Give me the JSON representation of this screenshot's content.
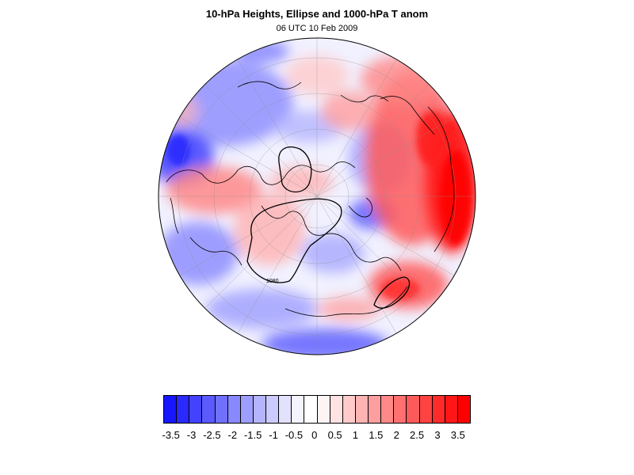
{
  "title": "10-hPa Heights, Ellipse and 1000-hPa T anom",
  "subtitle": "06 UTC 10 Feb 2009",
  "map": {
    "projection": "orthographic-polar",
    "field": "1000-hPa temperature anomaly",
    "contour_label": "1080"
  },
  "colorbar": {
    "colors": [
      "#1616ff",
      "#2a2aff",
      "#4343ff",
      "#5a5aff",
      "#7070ff",
      "#8888ff",
      "#9e9eff",
      "#b4b4ff",
      "#cbcbff",
      "#e2e2ff",
      "#f4f4ff",
      "#ffffff",
      "#fff4f4",
      "#ffe2e2",
      "#ffcbcb",
      "#ffb4b4",
      "#ff9e9e",
      "#ff8888",
      "#ff7070",
      "#ff5a5a",
      "#ff4343",
      "#ff2a2a",
      "#ff1616",
      "#ff0000"
    ],
    "tick_labels": [
      "-3.5",
      "-3",
      "-2.5",
      "-2",
      "-1.5",
      "-1",
      "-0.5",
      "0",
      "0.5",
      "1",
      "1.5",
      "2",
      "2.5",
      "3",
      "3.5"
    ]
  },
  "colors": {
    "warm": "#ff2a2a",
    "cold": "#4a4aff",
    "neutral": "#f4f4ff"
  }
}
